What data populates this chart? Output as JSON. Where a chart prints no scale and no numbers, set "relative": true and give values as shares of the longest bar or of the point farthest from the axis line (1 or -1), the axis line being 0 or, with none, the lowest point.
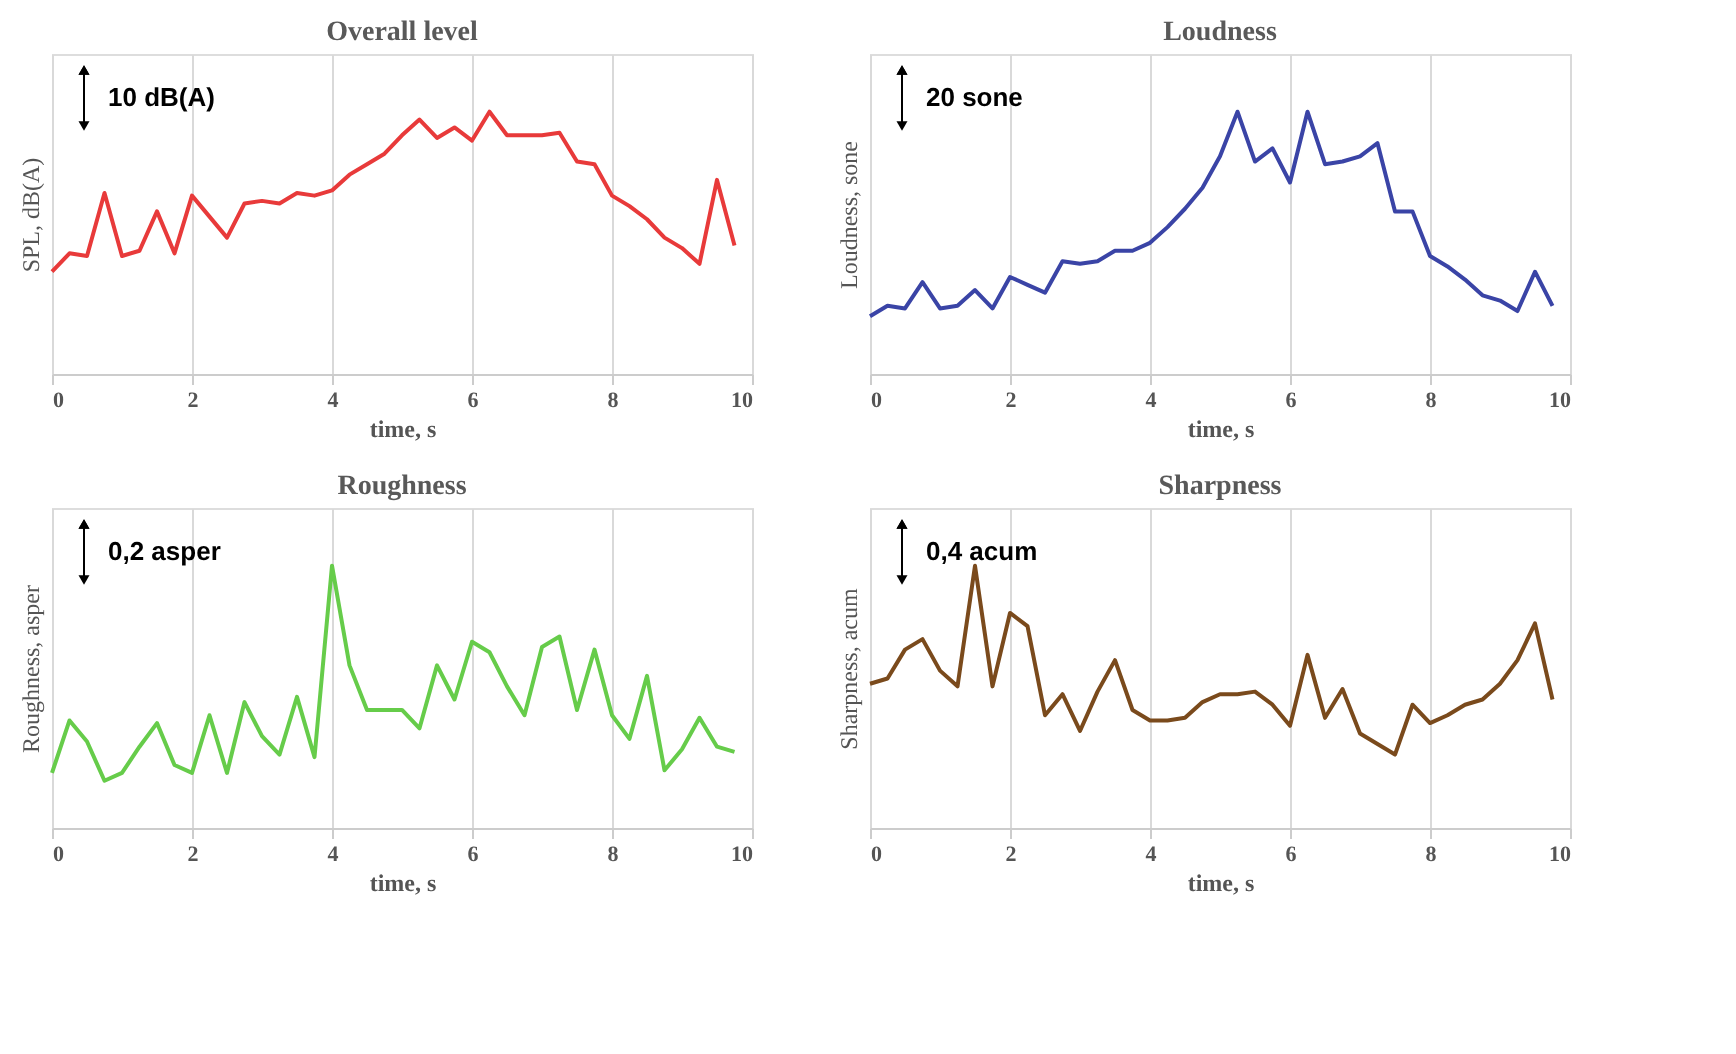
{
  "chart_data": [
    {
      "type": "line",
      "title": "Overall level",
      "xlabel": "time, s",
      "ylabel": "SPL, dB(A)",
      "relative": true,
      "xlim": [
        0,
        10
      ],
      "xticks": [
        0,
        2,
        4,
        6,
        8,
        10
      ],
      "grid": "x",
      "annotations": [
        "10 dB(A)"
      ],
      "x": [
        0,
        0.25,
        0.5,
        0.75,
        1,
        1.25,
        1.5,
        1.75,
        2,
        2.25,
        2.5,
        2.75,
        3,
        3.25,
        3.5,
        3.75,
        4,
        4.25,
        4.5,
        4.75,
        5,
        5.25,
        5.5,
        5.75,
        6,
        6.25,
        6.5,
        6.75,
        7,
        7.25,
        7.5,
        7.75,
        8,
        8.25,
        8.5,
        8.75,
        9,
        9.25,
        9.5,
        9.75
      ],
      "series": [
        {
          "color": "#e83a3a",
          "values": [
            0.39,
            0.46,
            0.45,
            0.69,
            0.45,
            0.47,
            0.62,
            0.46,
            0.68,
            0.6,
            0.52,
            0.65,
            0.66,
            0.65,
            0.69,
            0.68,
            0.7,
            0.76,
            0.8,
            0.84,
            0.91,
            0.97,
            0.9,
            0.94,
            0.89,
            1,
            0.91,
            0.91,
            0.91,
            0.92,
            0.81,
            0.8,
            0.68,
            0.64,
            0.59,
            0.52,
            0.48,
            0.42,
            0.74,
            0.49
          ]
        }
      ]
    },
    {
      "type": "line",
      "title": "Loudness",
      "xlabel": "time, s",
      "ylabel": "Loudness, sone",
      "relative": true,
      "xlim": [
        0,
        10
      ],
      "xticks": [
        0,
        2,
        4,
        6,
        8,
        10
      ],
      "grid": "x",
      "annotations": [
        "20 sone"
      ],
      "x": [
        0,
        0.25,
        0.5,
        0.75,
        1,
        1.25,
        1.5,
        1.75,
        2,
        2.25,
        2.5,
        2.75,
        3,
        3.25,
        3.5,
        3.75,
        4,
        4.25,
        4.5,
        4.75,
        5,
        5.25,
        5.5,
        5.75,
        6,
        6.25,
        6.5,
        6.75,
        7,
        7.25,
        7.5,
        7.75,
        8,
        8.25,
        8.5,
        8.75,
        9,
        9.25,
        9.5,
        9.75
      ],
      "series": [
        {
          "color": "#3a44a6",
          "values": [
            0.22,
            0.26,
            0.25,
            0.35,
            0.25,
            0.26,
            0.32,
            0.25,
            0.37,
            0.34,
            0.31,
            0.43,
            0.42,
            0.43,
            0.47,
            0.47,
            0.5,
            0.56,
            0.63,
            0.71,
            0.83,
            1,
            0.81,
            0.86,
            0.73,
            1,
            0.8,
            0.81,
            0.83,
            0.88,
            0.62,
            0.62,
            0.45,
            0.41,
            0.36,
            0.3,
            0.28,
            0.24,
            0.39,
            0.26
          ]
        }
      ]
    },
    {
      "type": "line",
      "title": "Roughness",
      "xlabel": "time, s",
      "ylabel": "Roughness, asper",
      "relative": true,
      "xlim": [
        0,
        10
      ],
      "xticks": [
        0,
        2,
        4,
        6,
        8,
        10
      ],
      "grid": "x",
      "annotations": [
        "0,2 asper"
      ],
      "x": [
        0,
        0.25,
        0.5,
        0.75,
        1,
        1.25,
        1.5,
        1.75,
        2,
        2.25,
        2.5,
        2.75,
        3,
        3.25,
        3.5,
        3.75,
        4,
        4.25,
        4.5,
        4.75,
        5,
        5.25,
        5.5,
        5.75,
        6,
        6.25,
        6.5,
        6.75,
        7,
        7.25,
        7.5,
        7.75,
        8,
        8.25,
        8.5,
        8.75,
        9,
        9.25,
        9.5,
        9.75
      ],
      "series": [
        {
          "color": "#66cc4a",
          "values": [
            0.21,
            0.41,
            0.33,
            0.18,
            0.21,
            0.31,
            0.4,
            0.24,
            0.21,
            0.43,
            0.21,
            0.48,
            0.35,
            0.28,
            0.5,
            0.27,
            1,
            0.62,
            0.45,
            0.45,
            0.45,
            0.38,
            0.62,
            0.49,
            0.71,
            0.67,
            0.54,
            0.43,
            0.69,
            0.73,
            0.45,
            0.68,
            0.43,
            0.34,
            0.58,
            0.22,
            0.3,
            0.42,
            0.31,
            0.29
          ]
        }
      ]
    },
    {
      "type": "line",
      "title": "Sharpness",
      "xlabel": "time, s",
      "ylabel": "Sharpness, acum",
      "relative": true,
      "xlim": [
        0,
        10
      ],
      "xticks": [
        0,
        2,
        4,
        6,
        8,
        10
      ],
      "grid": "x",
      "annotations": [
        "0,4 acum"
      ],
      "x": [
        0,
        0.25,
        0.5,
        0.75,
        1,
        1.25,
        1.5,
        1.75,
        2,
        2.25,
        2.5,
        2.75,
        3,
        3.25,
        3.5,
        3.75,
        4,
        4.25,
        4.5,
        4.75,
        5,
        5.25,
        5.5,
        5.75,
        6,
        6.25,
        6.5,
        6.75,
        7,
        7.25,
        7.5,
        7.75,
        8,
        8.25,
        8.5,
        8.75,
        9,
        9.25,
        9.5,
        9.75
      ],
      "series": [
        {
          "color": "#7a4a1c",
          "values": [
            0.55,
            0.57,
            0.68,
            0.72,
            0.6,
            0.54,
            1,
            0.54,
            0.82,
            0.77,
            0.43,
            0.51,
            0.37,
            0.52,
            0.64,
            0.45,
            0.41,
            0.41,
            0.42,
            0.48,
            0.51,
            0.51,
            0.52,
            0.47,
            0.39,
            0.66,
            0.42,
            0.53,
            0.36,
            0.32,
            0.28,
            0.47,
            0.4,
            0.43,
            0.47,
            0.49,
            0.55,
            0.64,
            0.78,
            0.49
          ]
        }
      ]
    }
  ]
}
